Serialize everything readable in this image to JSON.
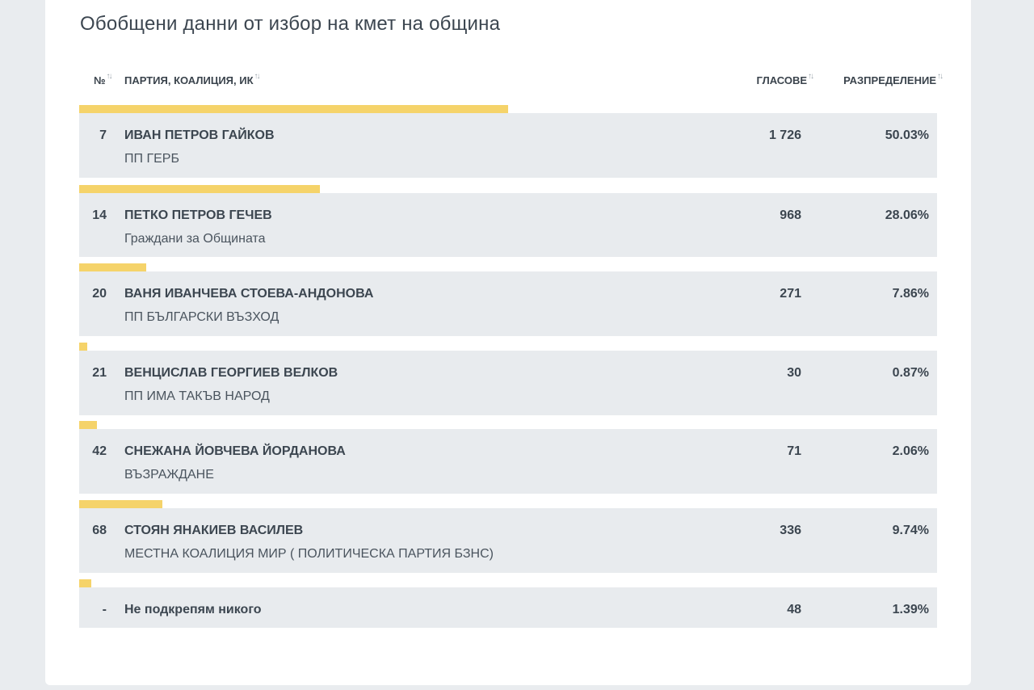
{
  "title": "Обобщени данни от избор на кмет на община",
  "columns": {
    "no": "№",
    "party": "ПАРТИЯ, КОАЛИЦИЯ, ИК",
    "votes": "ГЛАСОВЕ",
    "distribution": "РАЗПРЕДЕЛЕНИЕ"
  },
  "sort_icon": "↑↓",
  "accent_color": "#f5d36a",
  "rows": [
    {
      "no": "7",
      "name": "ИВАН ПЕТРОВ ГАЙКОВ",
      "party": "ПП ГЕРБ",
      "votes": "1 726",
      "pct": "50.03%",
      "share": 0.5003
    },
    {
      "no": "14",
      "name": "ПЕТКО ПЕТРОВ ГЕЧЕВ",
      "party": "Граждани за Общината",
      "votes": "968",
      "pct": "28.06%",
      "share": 0.2806
    },
    {
      "no": "20",
      "name": "ВАНЯ ИВАНЧЕВА СТОЕВА-АНДОНОВА",
      "party": "ПП БЪЛГАРСКИ ВЪЗХОД",
      "votes": "271",
      "pct": "7.86%",
      "share": 0.0786
    },
    {
      "no": "21",
      "name": "ВЕНЦИСЛАВ ГЕОРГИЕВ ВЕЛКОВ",
      "party": "ПП ИМА ТАКЪВ НАРОД",
      "votes": "30",
      "pct": "0.87%",
      "share": 0.0087
    },
    {
      "no": "42",
      "name": "СНЕЖАНА ЙОВЧЕВА ЙОРДАНОВА",
      "party": "ВЪЗРАЖДАНЕ",
      "votes": "71",
      "pct": "2.06%",
      "share": 0.0206
    },
    {
      "no": "68",
      "name": "СТОЯН ЯНАКИЕВ ВАСИЛЕВ",
      "party": "МЕСТНА КОАЛИЦИЯ МИР ( ПОЛИТИЧЕСКА ПАРТИЯ БЗНС)",
      "votes": "336",
      "pct": "9.74%",
      "share": 0.0974
    },
    {
      "no": "-",
      "name": "Не подкрепям никого",
      "party": "",
      "votes": "48",
      "pct": "1.39%",
      "share": 0.0139
    }
  ]
}
